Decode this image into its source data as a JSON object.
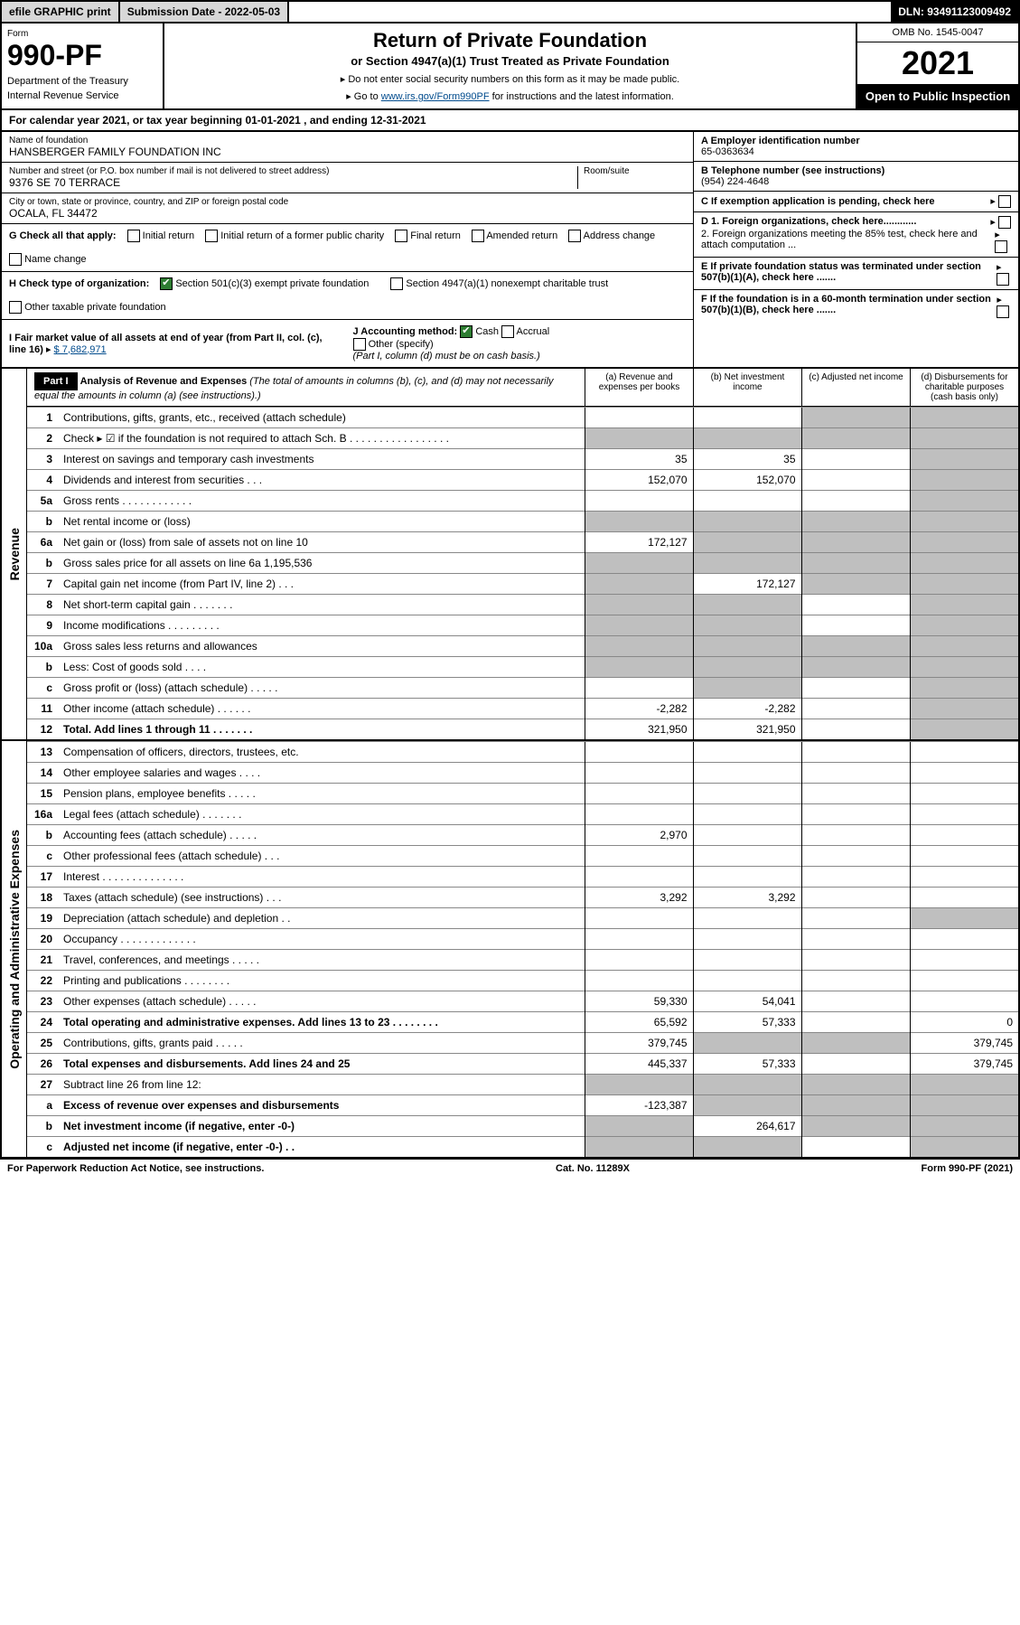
{
  "topbar": {
    "efile": "efile GRAPHIC print",
    "submission_label": "Submission Date - 2022-05-03",
    "dln": "DLN: 93491123009492"
  },
  "header": {
    "form_label": "Form",
    "form_number": "990-PF",
    "dept": "Department of the Treasury",
    "irs": "Internal Revenue Service",
    "title": "Return of Private Foundation",
    "subtitle": "or Section 4947(a)(1) Trust Treated as Private Foundation",
    "instr1": "▸ Do not enter social security numbers on this form as it may be made public.",
    "instr2_pre": "▸ Go to ",
    "instr2_link": "www.irs.gov/Form990PF",
    "instr2_post": " for instructions and the latest information.",
    "omb": "OMB No. 1545-0047",
    "year": "2021",
    "open": "Open to Public Inspection"
  },
  "cal": "For calendar year 2021, or tax year beginning 01-01-2021             , and ending 12-31-2021",
  "info": {
    "name_label": "Name of foundation",
    "name": "HANSBERGER FAMILY FOUNDATION INC",
    "addr_label": "Number and street (or P.O. box number if mail is not delivered to street address)",
    "addr": "9376 SE 70 TERRACE",
    "room_label": "Room/suite",
    "city_label": "City or town, state or province, country, and ZIP or foreign postal code",
    "city": "OCALA, FL  34472",
    "ein_label": "A Employer identification number",
    "ein": "65-0363634",
    "tel_label": "B Telephone number (see instructions)",
    "tel": "(954) 224-4648",
    "c_label": "C If exemption application is pending, check here",
    "d1": "D 1. Foreign organizations, check here............",
    "d2": "2. Foreign organizations meeting the 85% test, check here and attach computation ...",
    "e_label": "E  If private foundation status was terminated under section 507(b)(1)(A), check here .......",
    "f_label": "F  If the foundation is in a 60-month termination under section 507(b)(1)(B), check here .......",
    "g_label": "G Check all that apply:",
    "g_opts": [
      "Initial return",
      "Initial return of a former public charity",
      "Final return",
      "Amended return",
      "Address change",
      "Name change"
    ],
    "h_label": "H Check type of organization:",
    "h_opt1": "Section 501(c)(3) exempt private foundation",
    "h_opt2": "Section 4947(a)(1) nonexempt charitable trust",
    "h_opt3": "Other taxable private foundation",
    "i_label": "I Fair market value of all assets at end of year (from Part II, col. (c), line 16)",
    "i_val": "$  7,682,971",
    "j_label": "J Accounting method:",
    "j_opts": [
      "Cash",
      "Accrual"
    ],
    "j_other": "Other (specify)",
    "j_note": "(Part I, column (d) must be on cash basis.)"
  },
  "part1": {
    "label": "Part I",
    "title": "Analysis of Revenue and Expenses",
    "title_note": "(The total of amounts in columns (b), (c), and (d) may not necessarily equal the amounts in column (a) (see instructions).)",
    "col_a": "(a)  Revenue and expenses per books",
    "col_b": "(b)  Net investment income",
    "col_c": "(c)  Adjusted net income",
    "col_d": "(d)  Disbursements for charitable purposes (cash basis only)",
    "side_rev": "Revenue",
    "side_exp": "Operating and Administrative Expenses"
  },
  "rows": [
    {
      "n": "1",
      "d": "Contributions, gifts, grants, etc., received (attach schedule)",
      "a": "",
      "b": "",
      "c": "grey",
      "dd": "grey"
    },
    {
      "n": "2",
      "d": "Check ▸ ☑ if the foundation is not required to attach Sch. B   . . . . . . . . . . . . . . . . .",
      "a": "grey",
      "b": "grey",
      "c": "grey",
      "dd": "grey",
      "bold": false
    },
    {
      "n": "3",
      "d": "Interest on savings and temporary cash investments",
      "a": "35",
      "b": "35",
      "c": "",
      "dd": "grey"
    },
    {
      "n": "4",
      "d": "Dividends and interest from securities   . . .",
      "a": "152,070",
      "b": "152,070",
      "c": "",
      "dd": "grey"
    },
    {
      "n": "5a",
      "d": "Gross rents   . . . . . . . . . . . .",
      "a": "",
      "b": "",
      "c": "",
      "dd": "grey"
    },
    {
      "n": "b",
      "d": "Net rental income or (loss)  ",
      "a": "grey",
      "b": "grey",
      "c": "grey",
      "dd": "grey"
    },
    {
      "n": "6a",
      "d": "Net gain or (loss) from sale of assets not on line 10",
      "a": "172,127",
      "b": "grey",
      "c": "grey",
      "dd": "grey"
    },
    {
      "n": "b",
      "d": "Gross sales price for all assets on line 6a             1,195,536",
      "a": "grey",
      "b": "grey",
      "c": "grey",
      "dd": "grey"
    },
    {
      "n": "7",
      "d": "Capital gain net income (from Part IV, line 2)   . . .",
      "a": "grey",
      "b": "172,127",
      "c": "grey",
      "dd": "grey"
    },
    {
      "n": "8",
      "d": "Net short-term capital gain   . . . . . . .",
      "a": "grey",
      "b": "grey",
      "c": "",
      "dd": "grey"
    },
    {
      "n": "9",
      "d": "Income modifications   . . . . . . . . .",
      "a": "grey",
      "b": "grey",
      "c": "",
      "dd": "grey"
    },
    {
      "n": "10a",
      "d": "Gross sales less returns and allowances",
      "a": "grey",
      "b": "grey",
      "c": "grey",
      "dd": "grey"
    },
    {
      "n": "b",
      "d": "Less: Cost of goods sold   . . . .",
      "a": "grey",
      "b": "grey",
      "c": "grey",
      "dd": "grey"
    },
    {
      "n": "c",
      "d": "Gross profit or (loss) (attach schedule)   . . . . .",
      "a": "",
      "b": "grey",
      "c": "",
      "dd": "grey"
    },
    {
      "n": "11",
      "d": "Other income (attach schedule)   . . . . . .",
      "a": "-2,282",
      "b": "-2,282",
      "c": "",
      "dd": "grey"
    },
    {
      "n": "12",
      "d": "Total. Add lines 1 through 11   . . . . . . .",
      "a": "321,950",
      "b": "321,950",
      "c": "",
      "dd": "grey",
      "bold": true
    },
    {
      "n": "13",
      "d": "Compensation of officers, directors, trustees, etc.",
      "a": "",
      "b": "",
      "c": "",
      "dd": ""
    },
    {
      "n": "14",
      "d": "Other employee salaries and wages   . . . .",
      "a": "",
      "b": "",
      "c": "",
      "dd": ""
    },
    {
      "n": "15",
      "d": "Pension plans, employee benefits   . . . . .",
      "a": "",
      "b": "",
      "c": "",
      "dd": ""
    },
    {
      "n": "16a",
      "d": "Legal fees (attach schedule)   . . . . . . .",
      "a": "",
      "b": "",
      "c": "",
      "dd": ""
    },
    {
      "n": "b",
      "d": "Accounting fees (attach schedule)   . . . . .",
      "a": "2,970",
      "b": "",
      "c": "",
      "dd": ""
    },
    {
      "n": "c",
      "d": "Other professional fees (attach schedule)   . . .",
      "a": "",
      "b": "",
      "c": "",
      "dd": ""
    },
    {
      "n": "17",
      "d": "Interest   . . . . . . . . . . . . . .",
      "a": "",
      "b": "",
      "c": "",
      "dd": ""
    },
    {
      "n": "18",
      "d": "Taxes (attach schedule) (see instructions)   . . .",
      "a": "3,292",
      "b": "3,292",
      "c": "",
      "dd": ""
    },
    {
      "n": "19",
      "d": "Depreciation (attach schedule) and depletion   . .",
      "a": "",
      "b": "",
      "c": "",
      "dd": "grey"
    },
    {
      "n": "20",
      "d": "Occupancy   . . . . . . . . . . . . .",
      "a": "",
      "b": "",
      "c": "",
      "dd": ""
    },
    {
      "n": "21",
      "d": "Travel, conferences, and meetings   . . . . .",
      "a": "",
      "b": "",
      "c": "",
      "dd": ""
    },
    {
      "n": "22",
      "d": "Printing and publications   . . . . . . . .",
      "a": "",
      "b": "",
      "c": "",
      "dd": ""
    },
    {
      "n": "23",
      "d": "Other expenses (attach schedule)   . . . . .",
      "a": "59,330",
      "b": "54,041",
      "c": "",
      "dd": ""
    },
    {
      "n": "24",
      "d": "Total operating and administrative expenses. Add lines 13 to 23   . . . . . . . .",
      "a": "65,592",
      "b": "57,333",
      "c": "",
      "dd": "0",
      "bold": true
    },
    {
      "n": "25",
      "d": "Contributions, gifts, grants paid   . . . . .",
      "a": "379,745",
      "b": "grey",
      "c": "grey",
      "dd": "379,745"
    },
    {
      "n": "26",
      "d": "Total expenses and disbursements. Add lines 24 and 25",
      "a": "445,337",
      "b": "57,333",
      "c": "",
      "dd": "379,745",
      "bold": true
    },
    {
      "n": "27",
      "d": "Subtract line 26 from line 12:",
      "a": "grey",
      "b": "grey",
      "c": "grey",
      "dd": "grey"
    },
    {
      "n": "a",
      "d": "Excess of revenue over expenses and disbursements",
      "a": "-123,387",
      "b": "grey",
      "c": "grey",
      "dd": "grey",
      "bold": true
    },
    {
      "n": "b",
      "d": "Net investment income (if negative, enter -0-)",
      "a": "grey",
      "b": "264,617",
      "c": "grey",
      "dd": "grey",
      "bold": true
    },
    {
      "n": "c",
      "d": "Adjusted net income (if negative, enter -0-)   . .",
      "a": "grey",
      "b": "grey",
      "c": "",
      "dd": "grey",
      "bold": true
    }
  ],
  "footer": {
    "left": "For Paperwork Reduction Act Notice, see instructions.",
    "mid": "Cat. No. 11289X",
    "right": "Form 990-PF (2021)"
  },
  "colors": {
    "black": "#000000",
    "grey_bg": "#bfbfbf",
    "link": "#004b8d",
    "check_green": "#2e7d32"
  }
}
